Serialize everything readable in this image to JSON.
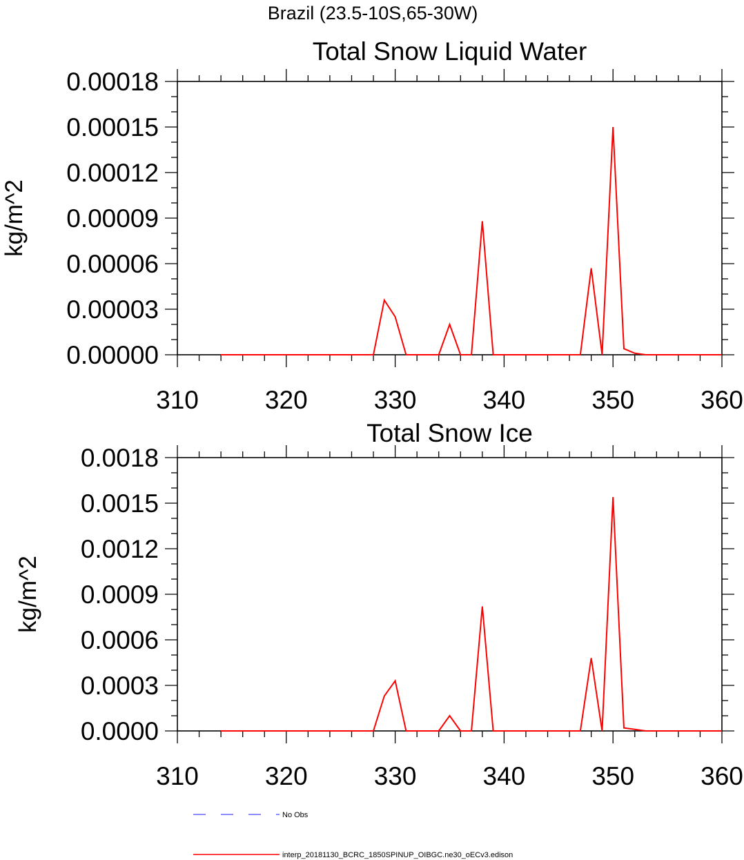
{
  "figure_title": "Brazil (23.5-10S,65-30W)",
  "chart_data": [
    {
      "type": "line",
      "title": "Total Snow Liquid Water",
      "ylabel": "kg/m^2",
      "xlabel": "",
      "xlim": [
        310,
        360
      ],
      "ylim": [
        0,
        0.00018
      ],
      "x_ticks": [
        "310",
        "320",
        "330",
        "340",
        "350",
        "360"
      ],
      "y_ticks": [
        "0.00000",
        "0.00003",
        "0.00006",
        "0.00009",
        "0.00012",
        "0.00015",
        "0.00018"
      ],
      "series": [
        {
          "name": "interp_20181130_BCRC_1850SPINUP_OIBGC.ne30_oECv3.edison",
          "color": "#ff0000",
          "x": [
            314,
            328,
            329,
            330,
            331,
            334,
            335,
            336,
            337,
            338,
            339,
            347,
            348,
            349,
            350,
            351,
            352,
            353,
            360
          ],
          "y": [
            0,
            0,
            3.6e-05,
            2.5e-05,
            0,
            0,
            2e-05,
            0,
            0,
            8.8e-05,
            0,
            0,
            5.7e-05,
            0,
            0.00015,
            4e-06,
            1e-06,
            0,
            0
          ]
        }
      ]
    },
    {
      "type": "line",
      "title": "Total Snow Ice",
      "ylabel": "kg/m^2",
      "xlabel": "",
      "xlim": [
        310,
        360
      ],
      "ylim": [
        0,
        0.0018
      ],
      "x_ticks": [
        "310",
        "320",
        "330",
        "340",
        "350",
        "360"
      ],
      "y_ticks": [
        "0.0000",
        "0.0003",
        "0.0006",
        "0.0009",
        "0.0012",
        "0.0015",
        "0.0018"
      ],
      "series": [
        {
          "name": "interp_20181130_BCRC_1850SPINUP_OIBGC.ne30_oECv3.edison",
          "color": "#ff0000",
          "x": [
            314,
            328,
            329,
            330,
            331,
            334,
            335,
            336,
            337,
            338,
            339,
            347,
            348,
            349,
            350,
            351,
            352,
            353,
            360
          ],
          "y": [
            0,
            0,
            0.00023,
            0.00033,
            0,
            0,
            0.0001,
            0,
            0,
            0.00082,
            0,
            0,
            0.00048,
            0,
            0.00154,
            2e-05,
            1e-05,
            0,
            0
          ]
        }
      ]
    }
  ],
  "legend": {
    "items": [
      {
        "label": "No Obs",
        "color": "#6666ff",
        "dash": "dashed"
      },
      {
        "label": "interp_20181130_BCRC_1850SPINUP_OIBGC.ne30_oECv3.edison",
        "color": "#ff0000",
        "dash": "solid"
      }
    ]
  }
}
